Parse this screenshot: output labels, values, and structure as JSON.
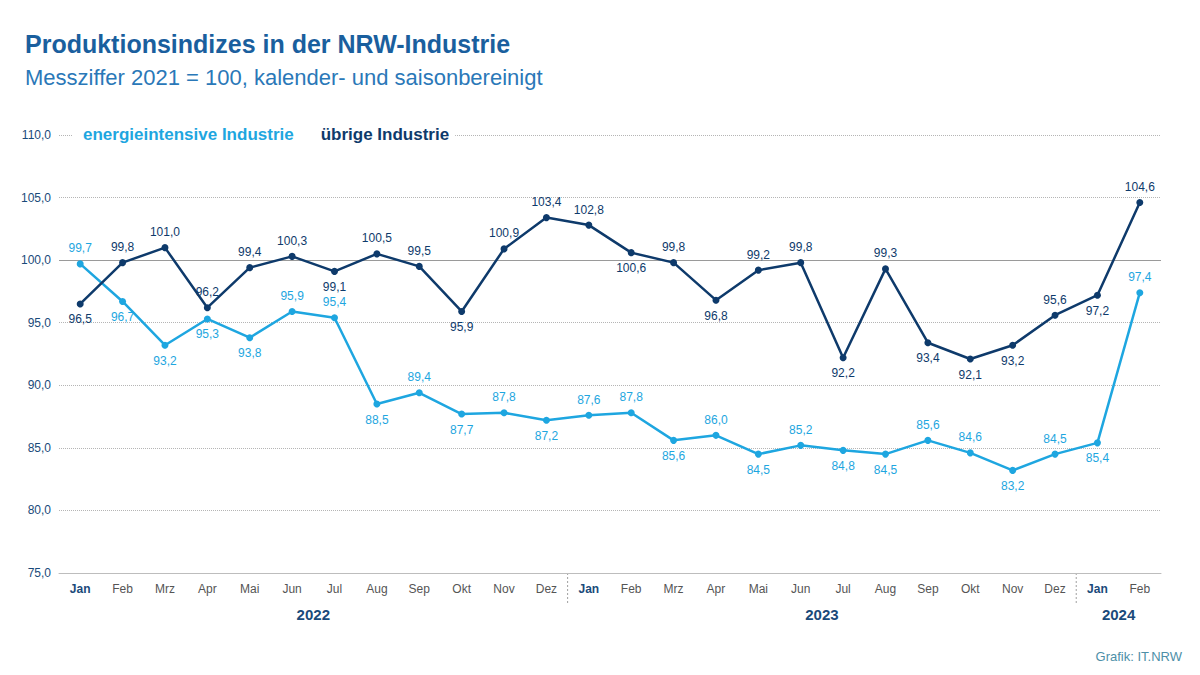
{
  "chart_data": {
    "type": "line",
    "title": "Produktionsindizes in der NRW-Industrie",
    "subtitle": "Messziffer 2021 = 100, kalender- und saisonbereinigt",
    "categories": [
      "Jan",
      "Feb",
      "Mrz",
      "Apr",
      "Mai",
      "Jun",
      "Jul",
      "Aug",
      "Sep",
      "Okt",
      "Nov",
      "Dez",
      "Jan",
      "Feb",
      "Mrz",
      "Apr",
      "Mai",
      "Jun",
      "Jul",
      "Aug",
      "Sep",
      "Okt",
      "Nov",
      "Dez",
      "Jan",
      "Feb"
    ],
    "x_groups": [
      {
        "label": "2022",
        "count": 12
      },
      {
        "label": "2023",
        "count": 12
      },
      {
        "label": "2024",
        "count": 2
      }
    ],
    "series": [
      {
        "name": "energieintensive Industrie",
        "color": "#1ea6e0",
        "values": [
          99.7,
          96.7,
          93.2,
          95.3,
          93.8,
          95.9,
          95.4,
          88.5,
          89.4,
          87.7,
          87.8,
          87.2,
          87.6,
          87.8,
          85.6,
          86.0,
          84.5,
          85.2,
          84.8,
          84.5,
          85.6,
          84.6,
          83.2,
          84.5,
          85.4,
          97.4
        ],
        "value_labels": [
          "99,7",
          "96,7",
          "93,2",
          "95,3",
          "93,8",
          "95,9",
          "95,4",
          "88,5",
          "89,4",
          "87,7",
          "87,8",
          "87,2",
          "87,6",
          "87,8",
          "85,6",
          "86,0",
          "84,5",
          "85,2",
          "84,8",
          "84,5",
          "85,6",
          "84,6",
          "83,2",
          "84,5",
          "85,4",
          "97,4"
        ]
      },
      {
        "name": "übrige Industrie",
        "color": "#0e3a6b",
        "values": [
          96.5,
          99.8,
          101.0,
          96.2,
          99.4,
          100.3,
          99.1,
          100.5,
          99.5,
          95.9,
          100.9,
          103.4,
          102.8,
          100.6,
          99.8,
          96.8,
          99.2,
          99.8,
          92.2,
          99.3,
          93.4,
          92.1,
          93.2,
          95.6,
          97.2,
          104.6
        ],
        "value_labels": [
          "96,5",
          "99,8",
          "101,0",
          "96,2",
          "99,4",
          "100,3",
          "99,1",
          "100,5",
          "99,5",
          "95,9",
          "100,9",
          "103,4",
          "102,8",
          "100,6",
          "99,8",
          "96,8",
          "99,2",
          "99,8",
          "92,2",
          "99,3",
          "93,4",
          "92,1",
          "93,2",
          "95,6",
          "97,2",
          "104,6"
        ]
      }
    ],
    "ylim": [
      75,
      110
    ],
    "yticks": [
      {
        "value": 75,
        "label": "75,0"
      },
      {
        "value": 80,
        "label": "80,0"
      },
      {
        "value": 85,
        "label": "85,0"
      },
      {
        "value": 90,
        "label": "90,0"
      },
      {
        "value": 95,
        "label": "95,0"
      },
      {
        "value": 100,
        "label": "100,0"
      },
      {
        "value": 105,
        "label": "105,0"
      },
      {
        "value": 110,
        "label": "110,0"
      }
    ],
    "reference_line": 100,
    "grid": true,
    "legend": "top-left",
    "data_labels": true,
    "marker": "circle",
    "source": "Grafik: IT.NRW"
  }
}
